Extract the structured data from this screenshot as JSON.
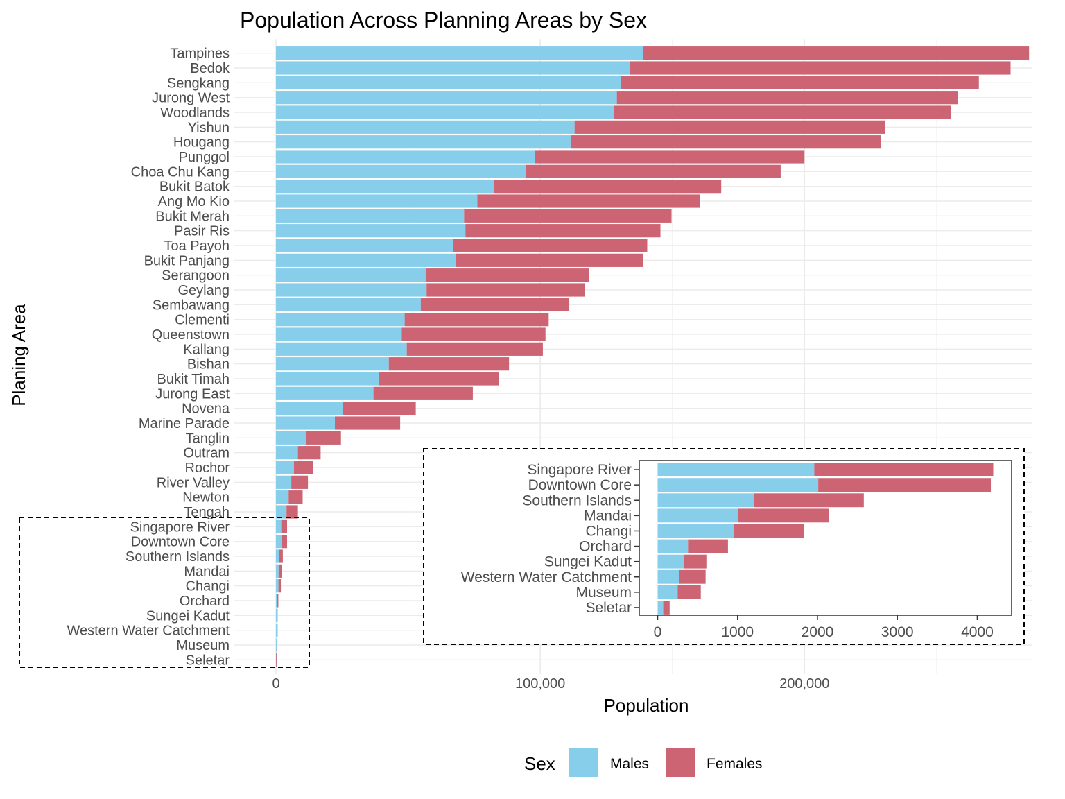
{
  "chart_data": [
    {
      "type": "bar",
      "orientation": "horizontal",
      "stacked": true,
      "title": "Population Across Planning Areas by Sex",
      "xlabel": "Population",
      "ylabel": "Planing Area",
      "xlim": [
        0,
        286000
      ],
      "xticks": [
        0,
        100000,
        200000
      ],
      "xtick_labels": [
        "0",
        "100,000",
        "200,000"
      ],
      "grid": true,
      "legend": {
        "title": "Sex",
        "position": "bottom"
      },
      "categories": [
        "Tampines",
        "Bedok",
        "Sengkang",
        "Jurong West",
        "Woodlands",
        "Yishun",
        "Hougang",
        "Punggol",
        "Choa Chu Kang",
        "Bukit Batok",
        "Ang Mo Kio",
        "Bukit Merah",
        "Pasir Ris",
        "Toa Payoh",
        "Bukit Panjang",
        "Serangoon",
        "Geylang",
        "Sembawang",
        "Clementi",
        "Queenstown",
        "Kallang",
        "Bishan",
        "Bukit Timah",
        "Jurong East",
        "Novena",
        "Marine Parade",
        "Tanglin",
        "Outram",
        "Rochor",
        "River Valley",
        "Newton",
        "Tengah",
        "Singapore River",
        "Downtown Core",
        "Southern Islands",
        "Mandai",
        "Changi",
        "Orchard",
        "Sungei Kadut",
        "Western Water Catchment",
        "Museum",
        "Seletar"
      ],
      "series": [
        {
          "name": "Males",
          "color": "#87CEEB",
          "values": [
            139000,
            134000,
            130500,
            129000,
            128000,
            113000,
            111500,
            98000,
            94500,
            82500,
            76200,
            71200,
            71700,
            67000,
            68000,
            56800,
            57000,
            54800,
            48700,
            47600,
            49500,
            42700,
            39100,
            36900,
            25400,
            22300,
            11400,
            8300,
            6800,
            5800,
            4800,
            4000,
            2000,
            2050,
            1200,
            1000,
            950,
            380,
            330,
            270,
            250,
            70
          ]
        },
        {
          "name": "Females",
          "color": "#CD6473",
          "values": [
            146000,
            144000,
            135500,
            129000,
            127500,
            117500,
            117500,
            102000,
            96500,
            86000,
            84300,
            78500,
            73800,
            73500,
            71000,
            61700,
            60000,
            56200,
            54500,
            54400,
            51500,
            45500,
            45300,
            37600,
            27500,
            24700,
            13200,
            8600,
            7200,
            6300,
            5300,
            4300,
            2200,
            2150,
            1400,
            1150,
            900,
            520,
            280,
            330,
            280,
            80
          ]
        }
      ]
    },
    {
      "type": "bar",
      "orientation": "horizontal",
      "stacked": true,
      "title": "",
      "xlabel": "",
      "ylabel": "",
      "xlim": [
        -230,
        4430
      ],
      "xticks": [
        0,
        1000,
        2000,
        3000,
        4000
      ],
      "xtick_labels": [
        "0",
        "1000",
        "2000",
        "3000",
        "4000"
      ],
      "grid": false,
      "categories": [
        "Singapore River",
        "Downtown Core",
        "Southern Islands",
        "Mandai",
        "Changi",
        "Orchard",
        "Sungei Kadut",
        "Western Water Catchment",
        "Museum",
        "Seletar"
      ],
      "series": [
        {
          "name": "Males",
          "color": "#87CEEB",
          "values": [
            1960,
            2010,
            1210,
            1010,
            950,
            380,
            330,
            270,
            250,
            70
          ]
        },
        {
          "name": "Females",
          "color": "#CD6473",
          "values": [
            2240,
            2160,
            1370,
            1130,
            880,
            500,
            280,
            330,
            290,
            80
          ]
        }
      ]
    }
  ]
}
